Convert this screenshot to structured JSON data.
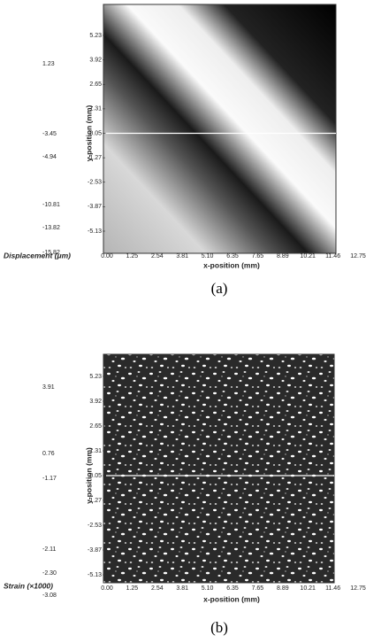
{
  "figures": [
    {
      "caption": "(a)",
      "legend_label": "Displacement (μm)",
      "legend_ticks": [
        "1.23",
        "-3.45",
        "-4.94",
        "-10.81",
        "-13.82",
        "-15.82"
      ],
      "y_axis_label": "y-position (mm)",
      "y_ticks": [
        "5.23",
        "3.92",
        "2.65",
        "1.31",
        "0.05",
        "-1.27",
        "-2.53",
        "-3.87",
        "-5.13"
      ],
      "x_axis_label": "x-position (mm)",
      "x_ticks": [
        "0.00",
        "1.25",
        "2.54",
        "3.81",
        "5.10",
        "6.35",
        "7.65",
        "8.89",
        "10.21",
        "11.46",
        "12.75"
      ]
    },
    {
      "caption": "(b)",
      "legend_label": "Strain (×1000)",
      "legend_ticks": [
        "3.91",
        "0.76",
        "-1.17",
        "-2.11",
        "-2.30",
        "-3.08"
      ],
      "y_axis_label": "y-position (mm)",
      "y_ticks": [
        "5.23",
        "3.92",
        "2.65",
        "1.31",
        "0.05",
        "-1.27",
        "-2.53",
        "-3.87",
        "-5.13"
      ],
      "x_axis_label": "x-position (mm)",
      "x_ticks": [
        "0.00",
        "1.25",
        "2.54",
        "3.81",
        "5.10",
        "6.35",
        "7.65",
        "8.89",
        "10.21",
        "11.46",
        "12.75"
      ]
    }
  ]
}
